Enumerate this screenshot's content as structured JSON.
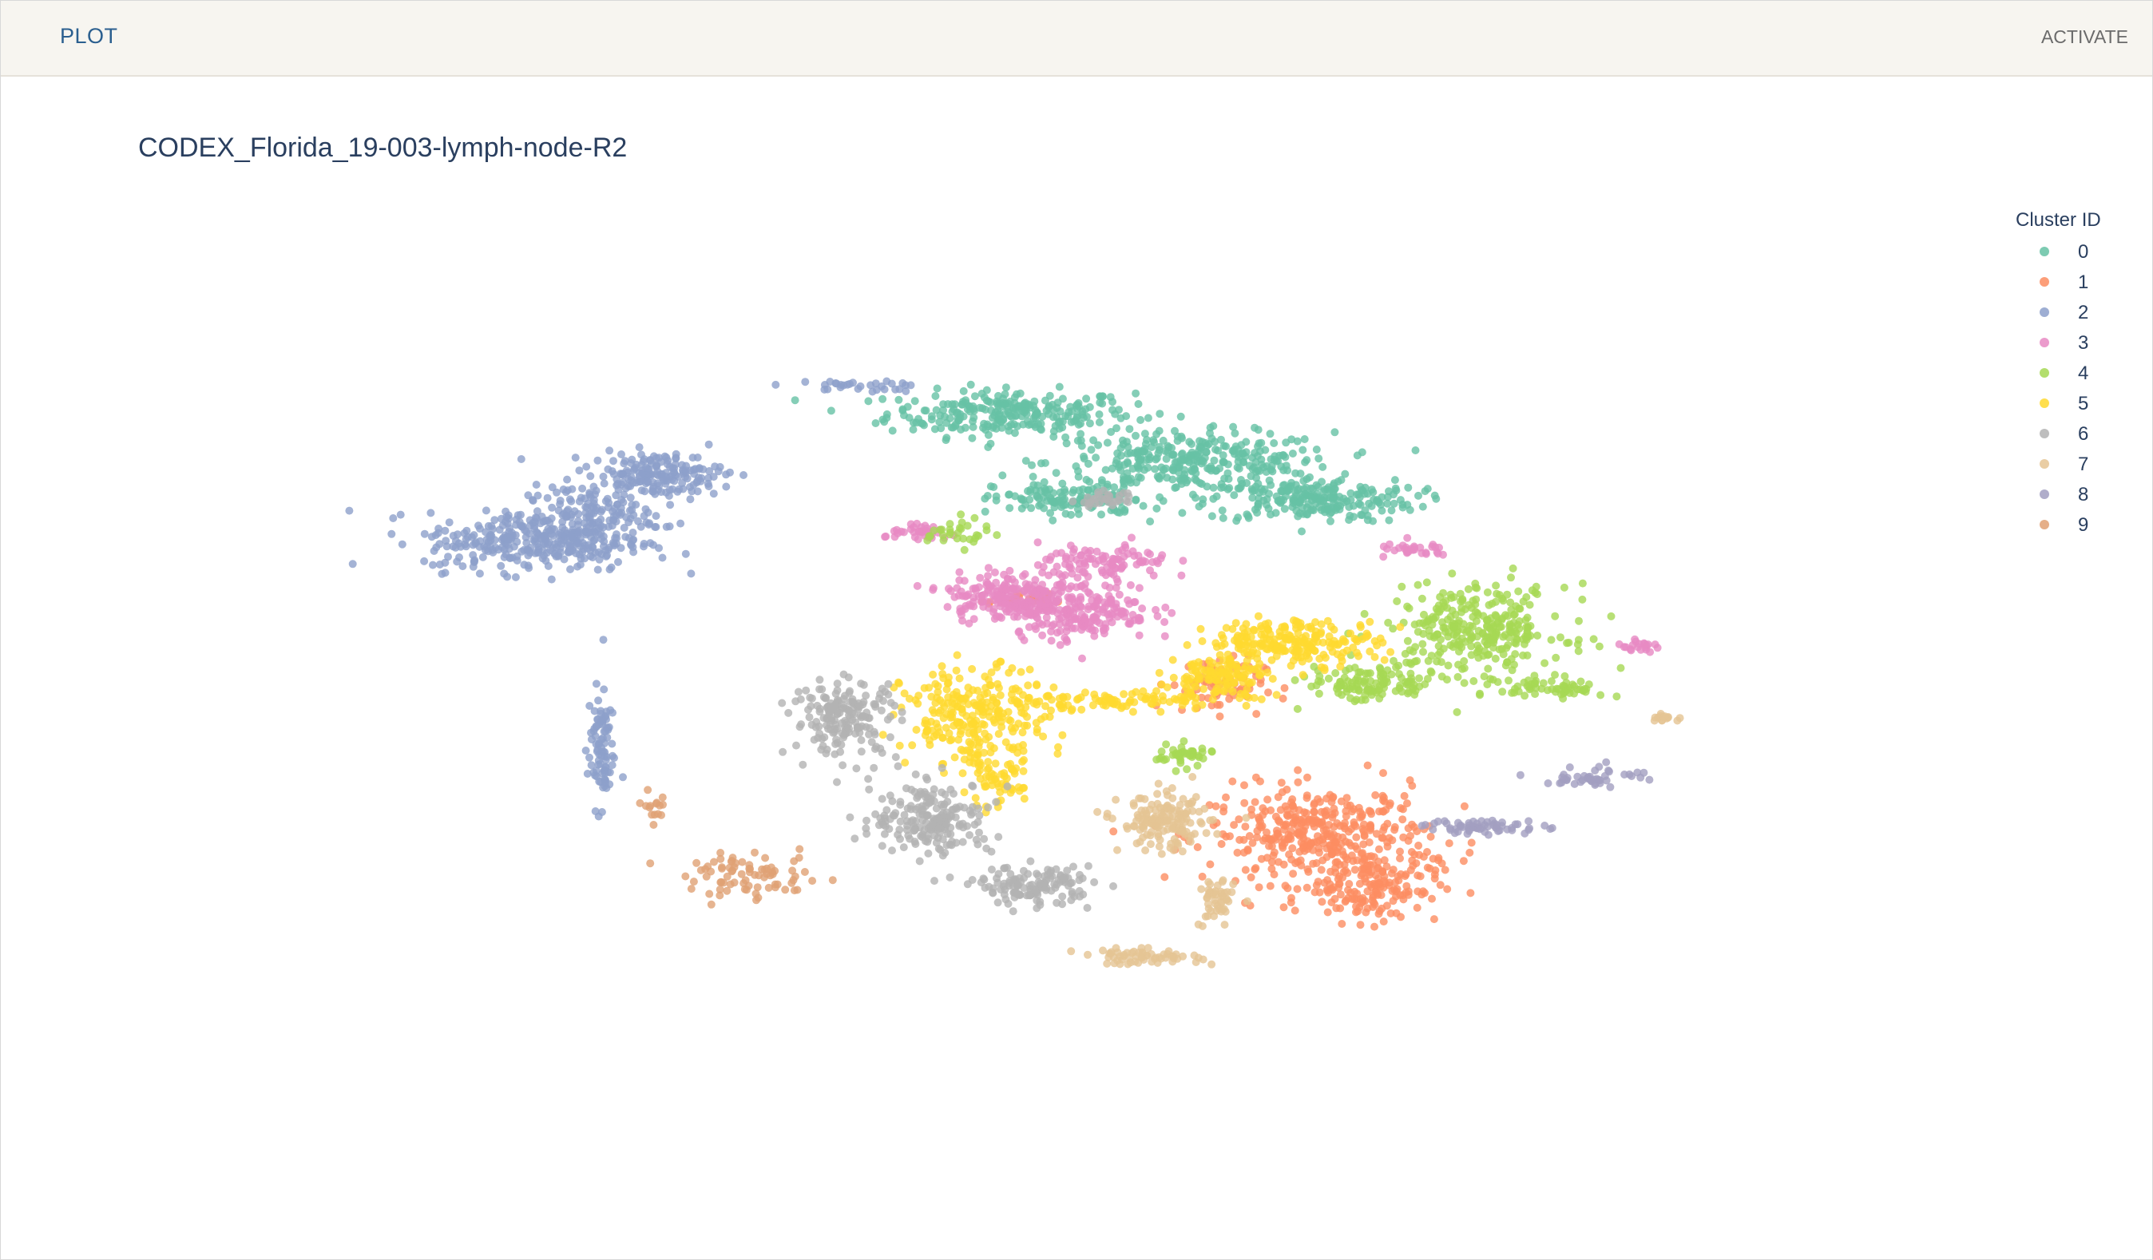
{
  "header": {
    "tab_label": "PLOT",
    "action_label": "ACTIVATE"
  },
  "chart_data": {
    "type": "scatter",
    "title": "CODEX_Florida_19-003-lymph-node-R2",
    "legend_title": "Cluster ID",
    "legend_position": "top-right",
    "grid": false,
    "xlim": [
      0,
      100
    ],
    "ylim": [
      0,
      100
    ],
    "series": [
      {
        "name": "0",
        "color": "#66c2a5"
      },
      {
        "name": "1",
        "color": "#fc8d62"
      },
      {
        "name": "2",
        "color": "#8da0cb"
      },
      {
        "name": "3",
        "color": "#e78ac3"
      },
      {
        "name": "4",
        "color": "#a6d854"
      },
      {
        "name": "5",
        "color": "#ffd92f"
      },
      {
        "name": "6",
        "color": "#b3b3b3"
      },
      {
        "name": "7",
        "color": "#e5c494"
      },
      {
        "name": "8",
        "color": "#a29fc1"
      },
      {
        "name": "9",
        "color": "#e0a174"
      }
    ],
    "clusters": [
      {
        "name": "0",
        "regions": [
          {
            "cx": 46.5,
            "cy": 78.3,
            "rx": 6.5,
            "ry": 2.5,
            "n": 260
          },
          {
            "cx": 57.0,
            "cy": 72.5,
            "rx": 7.5,
            "ry": 3.2,
            "n": 320
          },
          {
            "cx": 64.0,
            "cy": 68.0,
            "rx": 5.5,
            "ry": 2.4,
            "n": 220
          },
          {
            "cx": 50.0,
            "cy": 68.0,
            "rx": 4.0,
            "ry": 2.0,
            "n": 120
          }
        ]
      },
      {
        "name": "1",
        "regions": [
          {
            "cx": 64.5,
            "cy": 28.0,
            "rx": 5.8,
            "ry": 5.2,
            "n": 380
          },
          {
            "cx": 67.5,
            "cy": 22.0,
            "rx": 3.5,
            "ry": 4.0,
            "n": 160
          },
          {
            "cx": 58.5,
            "cy": 46.0,
            "rx": 2.5,
            "ry": 3.0,
            "n": 80
          },
          {
            "cx": 47.0,
            "cy": 56.0,
            "rx": 1.6,
            "ry": 0.7,
            "n": 25
          }
        ]
      },
      {
        "name": "2",
        "regions": [
          {
            "cx": 19.0,
            "cy": 63.0,
            "rx": 5.8,
            "ry": 3.2,
            "n": 300
          },
          {
            "cx": 26.0,
            "cy": 71.0,
            "rx": 3.5,
            "ry": 2.4,
            "n": 180
          },
          {
            "cx": 22.0,
            "cy": 66.0,
            "rx": 3.5,
            "ry": 3.5,
            "n": 150
          },
          {
            "cx": 22.8,
            "cy": 38.5,
            "rx": 0.7,
            "ry": 6.5,
            "n": 90
          },
          {
            "cx": 37.0,
            "cy": 81.5,
            "rx": 4.0,
            "ry": 0.6,
            "n": 30
          }
        ]
      },
      {
        "name": "3",
        "regions": [
          {
            "cx": 50.5,
            "cy": 55.0,
            "rx": 3.8,
            "ry": 3.5,
            "n": 230
          },
          {
            "cx": 46.0,
            "cy": 56.5,
            "rx": 3.0,
            "ry": 2.5,
            "n": 160
          },
          {
            "cx": 52.0,
            "cy": 60.5,
            "rx": 3.5,
            "ry": 2.0,
            "n": 100
          },
          {
            "cx": 41.5,
            "cy": 64.0,
            "rx": 2.0,
            "ry": 0.8,
            "n": 35
          },
          {
            "cx": 70.0,
            "cy": 62.0,
            "rx": 2.0,
            "ry": 0.8,
            "n": 30
          },
          {
            "cx": 83.0,
            "cy": 50.5,
            "rx": 1.2,
            "ry": 0.6,
            "n": 20
          }
        ]
      },
      {
        "name": "4",
        "regions": [
          {
            "cx": 73.5,
            "cy": 52.5,
            "rx": 4.8,
            "ry": 4.8,
            "n": 300
          },
          {
            "cx": 67.5,
            "cy": 46.0,
            "rx": 3.5,
            "ry": 2.0,
            "n": 120
          },
          {
            "cx": 78.0,
            "cy": 45.5,
            "rx": 2.8,
            "ry": 1.2,
            "n": 60
          },
          {
            "cx": 56.5,
            "cy": 37.5,
            "rx": 1.6,
            "ry": 1.2,
            "n": 40
          },
          {
            "cx": 43.5,
            "cy": 64.0,
            "rx": 1.6,
            "ry": 1.5,
            "n": 30
          }
        ]
      },
      {
        "name": "5",
        "regions": [
          {
            "cx": 44.5,
            "cy": 42.0,
            "rx": 3.8,
            "ry": 5.5,
            "n": 260
          },
          {
            "cx": 63.0,
            "cy": 51.0,
            "rx": 4.5,
            "ry": 2.4,
            "n": 220
          },
          {
            "cx": 58.5,
            "cy": 47.0,
            "rx": 2.5,
            "ry": 2.2,
            "n": 110
          },
          {
            "cx": 52.0,
            "cy": 44.0,
            "rx": 7.5,
            "ry": 1.0,
            "n": 100
          },
          {
            "cx": 45.5,
            "cy": 34.0,
            "rx": 1.6,
            "ry": 2.5,
            "n": 50
          }
        ]
      },
      {
        "name": "6",
        "regions": [
          {
            "cx": 37.0,
            "cy": 42.0,
            "rx": 2.8,
            "ry": 4.2,
            "n": 180
          },
          {
            "cx": 42.0,
            "cy": 30.0,
            "rx": 3.2,
            "ry": 4.0,
            "n": 200
          },
          {
            "cx": 48.0,
            "cy": 22.0,
            "rx": 3.0,
            "ry": 2.0,
            "n": 130
          },
          {
            "cx": 52.0,
            "cy": 68.0,
            "rx": 1.5,
            "ry": 0.8,
            "n": 30
          }
        ]
      },
      {
        "name": "7",
        "regions": [
          {
            "cx": 55.5,
            "cy": 29.5,
            "rx": 2.4,
            "ry": 3.0,
            "n": 150
          },
          {
            "cx": 58.5,
            "cy": 20.0,
            "rx": 0.9,
            "ry": 2.8,
            "n": 50
          },
          {
            "cx": 54.0,
            "cy": 13.5,
            "rx": 3.2,
            "ry": 0.8,
            "n": 60
          },
          {
            "cx": 84.5,
            "cy": 42.0,
            "rx": 1.0,
            "ry": 0.4,
            "n": 15
          }
        ]
      },
      {
        "name": "8",
        "regions": [
          {
            "cx": 74.0,
            "cy": 29.0,
            "rx": 3.2,
            "ry": 0.8,
            "n": 60
          },
          {
            "cx": 80.5,
            "cy": 35.0,
            "rx": 2.6,
            "ry": 1.2,
            "n": 45
          }
        ]
      },
      {
        "name": "9",
        "regions": [
          {
            "cx": 31.5,
            "cy": 23.0,
            "rx": 3.5,
            "ry": 2.5,
            "n": 80
          },
          {
            "cx": 26.0,
            "cy": 31.5,
            "rx": 0.8,
            "ry": 1.4,
            "n": 15
          }
        ]
      }
    ]
  }
}
